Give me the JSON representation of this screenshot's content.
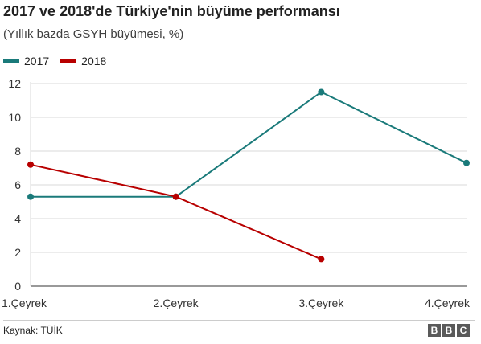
{
  "chart_data": {
    "type": "line",
    "title": "2017 ve 2018'de Türkiye'nin büyüme performansı",
    "subtitle": "(Yıllık bazda GSYH büyümesi, %)",
    "categories": [
      "1.Çeyrek",
      "2.Çeyrek",
      "3.Çeyrek",
      "4.Çeyrek"
    ],
    "yticks": [
      0,
      2,
      4,
      6,
      8,
      10,
      12
    ],
    "ylim": [
      0,
      12
    ],
    "grid": true,
    "legend_position": "top-left",
    "series": [
      {
        "name": "2017",
        "color": "#1a7a7a",
        "values": [
          5.3,
          5.3,
          11.5,
          7.3
        ]
      },
      {
        "name": "2018",
        "color": "#b80000",
        "values": [
          7.2,
          5.3,
          1.6,
          null
        ]
      }
    ]
  },
  "source": "Kaynak: TÜİK",
  "logo": {
    "letters": [
      "B",
      "B",
      "C"
    ],
    "color": "#5a5a5a"
  }
}
